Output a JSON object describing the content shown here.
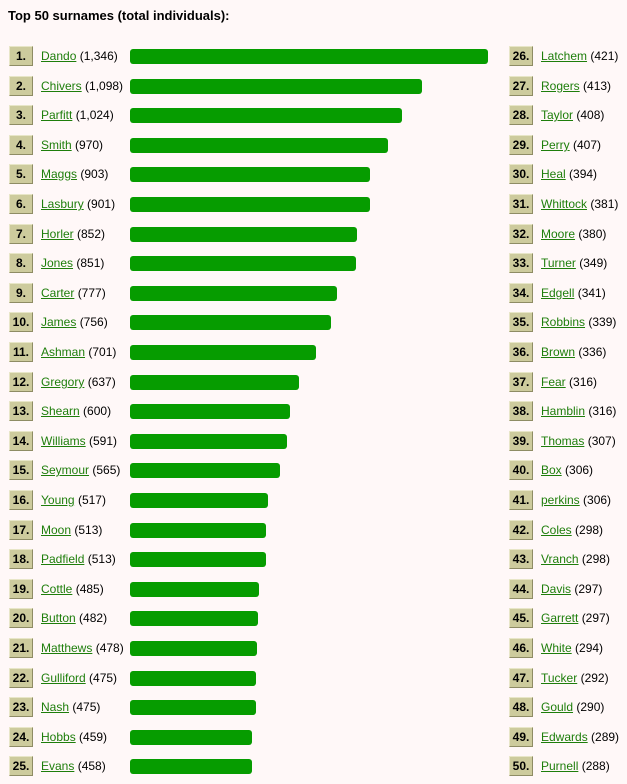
{
  "title": "Top 50 surnames (total individuals):",
  "chart_data": {
    "type": "bar",
    "orientation": "horizontal",
    "title": "Top 50 surnames (total individuals):",
    "bar_color": "#069c00",
    "link_color": "#1e7e0b",
    "rank_box_color": "#cdcb9d",
    "background": "#fff8f8",
    "items": [
      {
        "rank": "1.",
        "name": "Dando",
        "count": "(1,346)",
        "value": 1346
      },
      {
        "rank": "2.",
        "name": "Chivers",
        "count": "(1,098)",
        "value": 1098
      },
      {
        "rank": "3.",
        "name": "Parfitt",
        "count": "(1,024)",
        "value": 1024
      },
      {
        "rank": "4.",
        "name": "Smith",
        "count": "(970)",
        "value": 970
      },
      {
        "rank": "5.",
        "name": "Maggs",
        "count": "(903)",
        "value": 903
      },
      {
        "rank": "6.",
        "name": "Lasbury",
        "count": "(901)",
        "value": 901
      },
      {
        "rank": "7.",
        "name": "Horler",
        "count": "(852)",
        "value": 852
      },
      {
        "rank": "8.",
        "name": "Jones",
        "count": "(851)",
        "value": 851
      },
      {
        "rank": "9.",
        "name": "Carter",
        "count": "(777)",
        "value": 777
      },
      {
        "rank": "10.",
        "name": "James",
        "count": "(756)",
        "value": 756
      },
      {
        "rank": "11.",
        "name": "Ashman",
        "count": "(701)",
        "value": 701
      },
      {
        "rank": "12.",
        "name": "Gregory",
        "count": "(637)",
        "value": 637
      },
      {
        "rank": "13.",
        "name": "Shearn",
        "count": "(600)",
        "value": 600
      },
      {
        "rank": "14.",
        "name": "Williams",
        "count": "(591)",
        "value": 591
      },
      {
        "rank": "15.",
        "name": "Seymour",
        "count": "(565)",
        "value": 565
      },
      {
        "rank": "16.",
        "name": "Young",
        "count": "(517)",
        "value": 517
      },
      {
        "rank": "17.",
        "name": "Moon",
        "count": "(513)",
        "value": 513
      },
      {
        "rank": "18.",
        "name": "Padfield",
        "count": "(513)",
        "value": 513
      },
      {
        "rank": "19.",
        "name": "Cottle",
        "count": "(485)",
        "value": 485
      },
      {
        "rank": "20.",
        "name": "Button",
        "count": "(482)",
        "value": 482
      },
      {
        "rank": "21.",
        "name": "Matthews",
        "count": "(478)",
        "value": 478
      },
      {
        "rank": "22.",
        "name": "Gulliford",
        "count": "(475)",
        "value": 475
      },
      {
        "rank": "23.",
        "name": "Nash",
        "count": "(475)",
        "value": 475
      },
      {
        "rank": "24.",
        "name": "Hobbs",
        "count": "(459)",
        "value": 459
      },
      {
        "rank": "25.",
        "name": "Evans",
        "count": "(458)",
        "value": 458
      },
      {
        "rank": "26.",
        "name": "Latchem",
        "count": "(421)",
        "value": 421
      },
      {
        "rank": "27.",
        "name": "Rogers",
        "count": "(413)",
        "value": 413
      },
      {
        "rank": "28.",
        "name": "Taylor",
        "count": "(408)",
        "value": 408
      },
      {
        "rank": "29.",
        "name": "Perry",
        "count": "(407)",
        "value": 407
      },
      {
        "rank": "30.",
        "name": "Heal",
        "count": "(394)",
        "value": 394
      },
      {
        "rank": "31.",
        "name": "Whittock",
        "count": "(381)",
        "value": 381
      },
      {
        "rank": "32.",
        "name": "Moore",
        "count": "(380)",
        "value": 380
      },
      {
        "rank": "33.",
        "name": "Turner",
        "count": "(349)",
        "value": 349
      },
      {
        "rank": "34.",
        "name": "Edgell",
        "count": "(341)",
        "value": 341
      },
      {
        "rank": "35.",
        "name": "Robbins",
        "count": "(339)",
        "value": 339
      },
      {
        "rank": "36.",
        "name": "Brown",
        "count": "(336)",
        "value": 336
      },
      {
        "rank": "37.",
        "name": "Fear",
        "count": "(316)",
        "value": 316
      },
      {
        "rank": "38.",
        "name": "Hamblin",
        "count": "(316)",
        "value": 316
      },
      {
        "rank": "39.",
        "name": "Thomas",
        "count": "(307)",
        "value": 307
      },
      {
        "rank": "40.",
        "name": "Box",
        "count": "(306)",
        "value": 306
      },
      {
        "rank": "41.",
        "name": "perkins",
        "count": "(306)",
        "value": 306
      },
      {
        "rank": "42.",
        "name": "Coles",
        "count": "(298)",
        "value": 298
      },
      {
        "rank": "43.",
        "name": "Vranch",
        "count": "(298)",
        "value": 298
      },
      {
        "rank": "44.",
        "name": "Davis",
        "count": "(297)",
        "value": 297
      },
      {
        "rank": "45.",
        "name": "Garrett",
        "count": "(297)",
        "value": 297
      },
      {
        "rank": "46.",
        "name": "White",
        "count": "(294)",
        "value": 294
      },
      {
        "rank": "47.",
        "name": "Tucker",
        "count": "(292)",
        "value": 292
      },
      {
        "rank": "48.",
        "name": "Gould",
        "count": "(290)",
        "value": 290
      },
      {
        "rank": "49.",
        "name": "Edwards",
        "count": "(289)",
        "value": 289
      },
      {
        "rank": "50.",
        "name": "Purnell",
        "count": "(288)",
        "value": 288
      }
    ]
  }
}
